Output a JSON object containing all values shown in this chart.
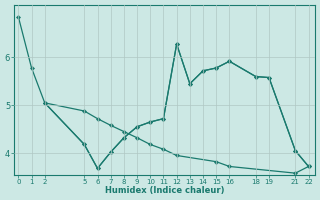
{
  "xlabel": "Humidex (Indice chaleur)",
  "background_color": "#cce8e4",
  "grid_color": "#b0c8c4",
  "line_color": "#1a7a6e",
  "xtick_labels": [
    "0",
    "1",
    "2",
    "5",
    "6",
    "7",
    "8",
    "9",
    "10",
    "11",
    "12",
    "13",
    "14",
    "15",
    "16",
    "18",
    "19",
    "21",
    "22"
  ],
  "xtick_positions": [
    0,
    1,
    2,
    5,
    6,
    7,
    8,
    9,
    10,
    11,
    12,
    13,
    14,
    15,
    16,
    18,
    19,
    21,
    22
  ],
  "xlim": [
    -0.3,
    22.5
  ],
  "ylim": [
    3.55,
    7.1
  ],
  "ytick_positions": [
    4,
    5,
    6
  ],
  "ytick_labels": [
    "4",
    "5",
    "6"
  ],
  "line1_x": [
    0,
    1,
    2,
    5,
    6,
    7,
    8,
    9,
    10,
    11,
    12,
    13,
    14,
    15,
    16,
    18,
    19,
    21,
    22
  ],
  "line1_y": [
    6.85,
    5.78,
    5.05,
    4.18,
    3.68,
    4.02,
    4.32,
    4.55,
    4.65,
    4.72,
    6.28,
    5.45,
    5.72,
    5.78,
    5.92,
    5.6,
    5.58,
    4.05,
    3.72
  ],
  "line2_x": [
    2,
    5,
    6,
    7,
    8,
    9,
    10,
    11,
    12,
    15,
    16,
    21,
    22
  ],
  "line2_y": [
    5.05,
    4.88,
    4.72,
    4.58,
    4.45,
    4.32,
    4.18,
    4.08,
    3.95,
    3.82,
    3.72,
    3.58,
    3.72
  ],
  "line3_x": [
    2,
    5,
    6,
    7,
    8,
    9,
    10,
    11,
    12,
    13,
    14,
    15,
    16,
    18,
    19,
    21,
    22
  ],
  "line3_y": [
    5.05,
    4.18,
    3.68,
    4.02,
    4.32,
    4.55,
    4.65,
    4.72,
    6.28,
    5.45,
    5.72,
    5.78,
    5.92,
    5.6,
    5.58,
    4.05,
    3.72
  ]
}
